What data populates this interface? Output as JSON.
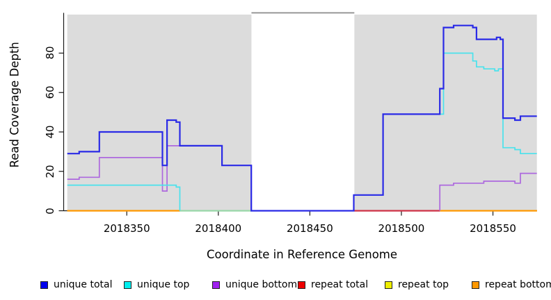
{
  "chart_data": {
    "type": "line",
    "title": "",
    "xlabel": "Coordinate in Reference Genome",
    "ylabel": "Read Coverage Depth",
    "x_ticks": [
      2018350,
      2018400,
      2018450,
      2018500,
      2018550
    ],
    "y_ticks": [
      0,
      20,
      40,
      60,
      80
    ],
    "xlim": [
      2018317.5,
      2018574
    ],
    "ylim": [
      0,
      100.5
    ],
    "grid": false,
    "legend_position": "bottom",
    "shaded_regions": [
      {
        "name": "left-shaded-block",
        "from": 2018317.5,
        "to": 2018418.1,
        "color": "#dcdcdc"
      },
      {
        "name": "right-shaded-block",
        "from": 2018474.3,
        "to": 2018574,
        "color": "#dcdcdc"
      }
    ],
    "gap_top_line": {
      "from": 2018418.1,
      "to": 2018474.3,
      "color": "#8a8a8a"
    },
    "series": [
      {
        "name": "unique total",
        "color": "#2a2ae6",
        "width": 2.2,
        "segments": [
          {
            "steps": [
              [
                2018317.5,
                29
              ],
              [
                2018324,
                30
              ],
              [
                2018335,
                40
              ],
              [
                2018369.5,
                23
              ],
              [
                2018372,
                46
              ],
              [
                2018377,
                45
              ],
              [
                2018379,
                33
              ],
              [
                2018402,
                23
              ],
              [
                2018418,
                0
              ],
              [
                2018474,
                8
              ],
              [
                2018490,
                49
              ],
              [
                2018521,
                62
              ],
              [
                2018523,
                93
              ],
              [
                2018528.5,
                94
              ],
              [
                2018539,
                93
              ],
              [
                2018541,
                87
              ],
              [
                2018552,
                88
              ],
              [
                2018554,
                87
              ],
              [
                2018555.5,
                47
              ],
              [
                2018562,
                46
              ],
              [
                2018565,
                48
              ]
            ],
            "end": 2018574
          }
        ]
      },
      {
        "name": "unique top",
        "color": "#49e2ec",
        "width": 1.7,
        "segments": [
          {
            "steps": [
              [
                2018317.5,
                13
              ],
              [
                2018377,
                12
              ],
              [
                2018379,
                0
              ]
            ],
            "end": 2018379
          },
          {
            "steps": [
              [
                2018474,
                0
              ],
              [
                2018474,
                8
              ],
              [
                2018490,
                49
              ],
              [
                2018523,
                80
              ],
              [
                2018539,
                76
              ],
              [
                2018541,
                73
              ],
              [
                2018545,
                72
              ],
              [
                2018551,
                71
              ],
              [
                2018553,
                72
              ],
              [
                2018555.5,
                32
              ],
              [
                2018562,
                31
              ],
              [
                2018565,
                29
              ]
            ],
            "end": 2018574
          }
        ]
      },
      {
        "name": "unique bottom",
        "color": "#ad68de",
        "width": 1.7,
        "segments": [
          {
            "steps": [
              [
                2018317.5,
                16
              ],
              [
                2018324,
                17
              ],
              [
                2018335,
                27
              ],
              [
                2018369.5,
                10
              ],
              [
                2018372,
                33
              ],
              [
                2018402,
                23
              ],
              [
                2018418,
                0
              ]
            ],
            "end": 2018418
          },
          {
            "steps": [
              [
                2018521,
                0
              ],
              [
                2018521,
                13
              ],
              [
                2018528.5,
                14
              ],
              [
                2018545,
                15
              ],
              [
                2018562,
                14
              ],
              [
                2018565,
                19
              ]
            ],
            "end": 2018574
          }
        ]
      },
      {
        "name": "repeat total",
        "color": "#ee0000",
        "width": 1.7,
        "constant": 0
      },
      {
        "name": "repeat top",
        "color": "#eeee00",
        "width": 1.7,
        "constant": 0
      },
      {
        "name": "repeat bottom",
        "color": "#ff9800",
        "width": 1.7,
        "constant": 0
      }
    ],
    "baseline_render": [
      {
        "from": 2018317.5,
        "to": 2018379,
        "color": "#ff9800"
      },
      {
        "from": 2018379,
        "to": 2018418.1,
        "color": "#98d7a8"
      },
      {
        "from": 2018474.3,
        "to": 2018521,
        "color": "#cf3347"
      },
      {
        "from": 2018521,
        "to": 2018574,
        "color": "#ff9800"
      }
    ],
    "legend": [
      {
        "label": "unique total",
        "color": "#0000ee"
      },
      {
        "label": "unique top",
        "color": "#00eeee"
      },
      {
        "label": "unique bottom",
        "color": "#a020f0"
      },
      {
        "label": "repeat total",
        "color": "#ee0000"
      },
      {
        "label": "repeat top",
        "color": "#eeee00"
      },
      {
        "label": "repeat bottom",
        "color": "#ff9800"
      }
    ]
  }
}
